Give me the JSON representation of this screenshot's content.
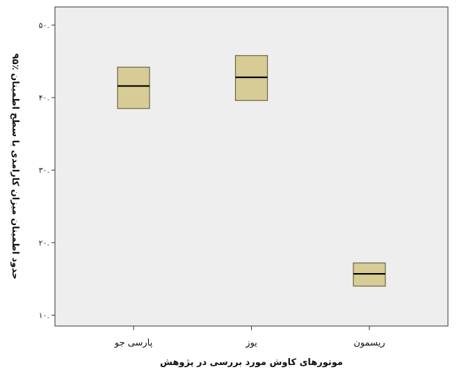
{
  "chart_data": {
    "type": "boxplot",
    "categories": [
      "پارسی جو",
      "یوز",
      "ریسمون"
    ],
    "boxes": [
      {
        "category": "پارسی جو",
        "low": 0.385,
        "median": 0.416,
        "high": 0.442
      },
      {
        "category": "یوز",
        "low": 0.396,
        "median": 0.428,
        "high": 0.458
      },
      {
        "category": "ریسمون",
        "low": 0.14,
        "median": 0.157,
        "high": 0.172
      }
    ],
    "ylim": [
      0.085,
      0.525
    ],
    "yticks": [
      0.1,
      0.2,
      0.3,
      0.4,
      0.5
    ],
    "ytick_labels": [
      "۱۰.",
      "۲۰.",
      "۳۰.",
      "۴۰.",
      "۵۰."
    ],
    "xlabel": "موتورهای کاوش مورد بررسی در پژوهش",
    "ylabel": "حدود اطمینان میزان کارامدی با سطح اطمینان ٪۹۵",
    "colors": {
      "box_fill": "#d7cb96",
      "box_stroke": "#6b6540",
      "plot_bg": "#eeeeee",
      "median": "#000000"
    },
    "grid": false
  }
}
